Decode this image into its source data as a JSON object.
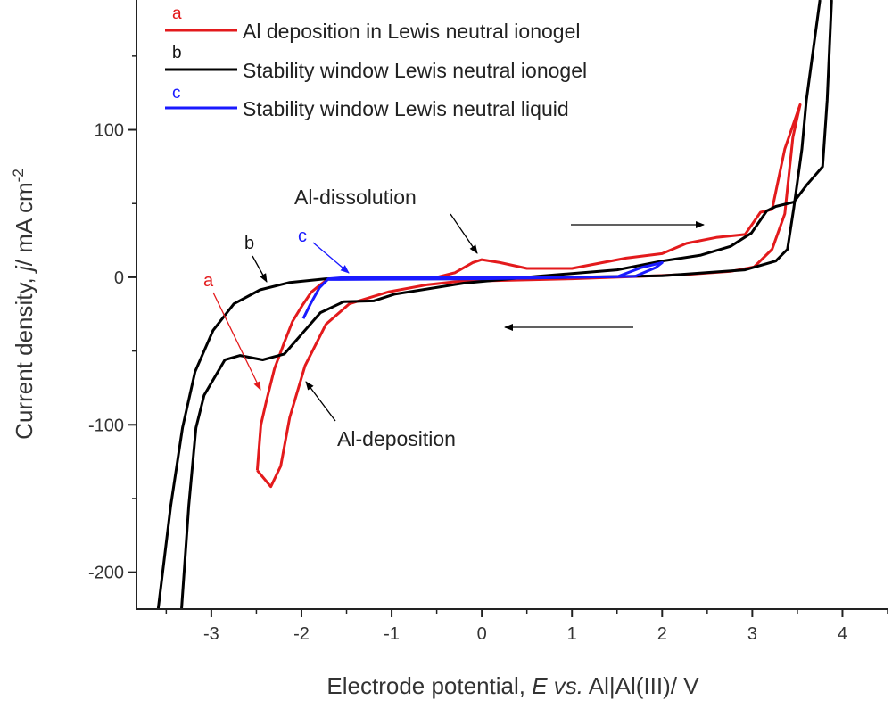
{
  "chart_data": {
    "type": "line",
    "xlabel": {
      "prefix": "Electrode potential, ",
      "italic": "E vs.",
      "suffix": " Al|Al(III)/ V"
    },
    "ylabel": {
      "prefix": "Current density, ",
      "italic": "j",
      "suffix": "/ mA cm",
      "sup": "-2"
    },
    "xlim": [
      -3.83,
      4.5
    ],
    "ylim": [
      -225,
      188
    ],
    "xticks": [
      -3,
      -2,
      -1,
      0,
      1,
      2,
      3,
      4
    ],
    "xtick_labels": [
      "-3",
      "-2",
      "-1",
      "0",
      "1",
      "2",
      "3",
      "4"
    ],
    "yticks": [
      -200,
      -100,
      0,
      100
    ],
    "ytick_labels": [
      "-200",
      "-100",
      "0",
      "100"
    ],
    "grid": false,
    "legend_position": "top-left",
    "series": [
      {
        "name": "Al deposition in Lewis neutral ionogel",
        "letter": "a",
        "color": "#e31a1c",
        "points": [
          [
            -2.49,
            -131
          ],
          [
            -2.45,
            -100
          ],
          [
            -2.39,
            -84
          ],
          [
            -2.3,
            -62
          ],
          [
            -2.19,
            -44
          ],
          [
            -2.1,
            -30
          ],
          [
            -1.99,
            -19
          ],
          [
            -1.89,
            -10
          ],
          [
            -1.79,
            -5
          ],
          [
            -1.7,
            -1
          ],
          [
            -1.2,
            -1
          ],
          [
            -0.5,
            0
          ],
          [
            -0.3,
            3
          ],
          [
            -0.1,
            10
          ],
          [
            0,
            12
          ],
          [
            0.2,
            10
          ],
          [
            0.5,
            6
          ],
          [
            1,
            6
          ],
          [
            1.6,
            13
          ],
          [
            2,
            16
          ],
          [
            2.27,
            23
          ],
          [
            2.6,
            27
          ],
          [
            2.92,
            29
          ],
          [
            3.09,
            44
          ],
          [
            3.22,
            46
          ],
          [
            3.36,
            87
          ],
          [
            3.53,
            117
          ],
          [
            3.45,
            95
          ],
          [
            3.36,
            43
          ],
          [
            3.22,
            19
          ],
          [
            3.02,
            7
          ],
          [
            2.76,
            4
          ],
          [
            2.3,
            2
          ],
          [
            1.93,
            1
          ],
          [
            1,
            -1
          ],
          [
            0,
            -2.5
          ],
          [
            -0.2,
            -2.4
          ],
          [
            -0.6,
            -5
          ],
          [
            -1.04,
            -10
          ],
          [
            -1.47,
            -18
          ],
          [
            -1.73,
            -32
          ],
          [
            -1.96,
            -60
          ],
          [
            -2.13,
            -95
          ],
          [
            -2.23,
            -128
          ],
          [
            -2.34,
            -142
          ],
          [
            -2.49,
            -131
          ]
        ]
      },
      {
        "name": "Stability window Lewis neutral ionogel",
        "letter": "b",
        "color": "#000000",
        "points": [
          [
            -3.33,
            -225
          ],
          [
            -3.25,
            -155
          ],
          [
            -3.17,
            -102
          ],
          [
            -3.08,
            -80
          ],
          [
            -2.85,
            -56
          ],
          [
            -2.68,
            -53
          ],
          [
            -2.43,
            -56
          ],
          [
            -2.19,
            -52
          ],
          [
            -1.99,
            -38
          ],
          [
            -1.79,
            -24
          ],
          [
            -1.53,
            -16.5
          ],
          [
            -1.2,
            -16
          ],
          [
            -0.97,
            -11.5
          ],
          [
            -0.2,
            -4
          ],
          [
            0.61,
            0.6
          ],
          [
            1.5,
            5
          ],
          [
            2.0,
            11
          ],
          [
            2.43,
            15
          ],
          [
            2.76,
            21
          ],
          [
            2.99,
            30
          ],
          [
            3.16,
            45
          ],
          [
            3.26,
            48
          ],
          [
            3.46,
            51
          ],
          [
            3.61,
            63
          ],
          [
            3.78,
            75
          ],
          [
            3.83,
            120
          ],
          [
            3.88,
            188
          ],
          null,
          [
            3.75,
            188
          ],
          [
            3.6,
            120
          ],
          [
            3.55,
            87
          ],
          [
            3.46,
            47
          ],
          [
            3.39,
            19
          ],
          [
            3.26,
            11
          ],
          [
            2.92,
            5
          ],
          [
            2,
            1
          ],
          [
            1,
            0
          ],
          [
            0,
            -1
          ],
          [
            -1,
            -1
          ],
          [
            -1.73,
            -1
          ],
          [
            -2.13,
            -3.5
          ],
          [
            -2.46,
            -8.5
          ],
          [
            -2.75,
            -18
          ],
          [
            -2.98,
            -36
          ],
          [
            -3.18,
            -64
          ],
          [
            -3.32,
            -102
          ],
          [
            -3.45,
            -155
          ],
          [
            -3.59,
            -225
          ]
        ]
      },
      {
        "name": "Stability window Lewis neutral liquid",
        "letter": "c",
        "color": "#1a1aff",
        "points": [
          [
            -1.98,
            -28
          ],
          [
            -1.9,
            -18
          ],
          [
            -1.8,
            -7
          ],
          [
            -1.7,
            -1
          ],
          [
            -1.5,
            0
          ],
          [
            0,
            0
          ],
          [
            1.5,
            0.3
          ],
          [
            1.77,
            6.6
          ],
          [
            2.0,
            10
          ],
          [
            1.93,
            6.6
          ],
          [
            1.7,
            0.6
          ],
          [
            0,
            -1
          ],
          [
            -1.7,
            -1.5
          ]
        ]
      }
    ],
    "annotations": {
      "dissolution": "Al-dissolution",
      "deposition": "Al-deposition",
      "label_a": "a",
      "label_b": "b",
      "label_c": "c"
    }
  }
}
